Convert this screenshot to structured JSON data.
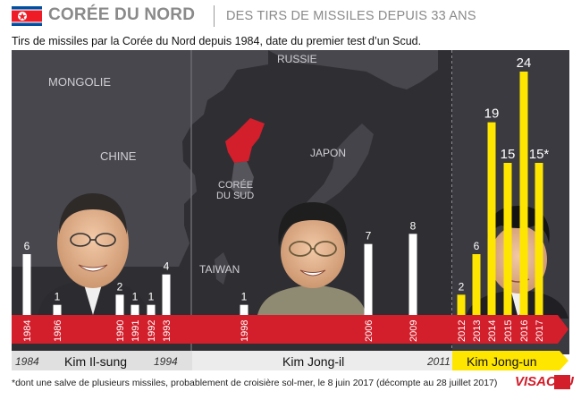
{
  "header": {
    "title": "CORÉE DU NORD",
    "subtitle": "DES TIRS DE MISSILES DEPUIS 33 ANS"
  },
  "intro": "Tirs de missiles par la Corée du Nord depuis 1984, date du premier test d’un Scud.",
  "map_labels": {
    "russia": "RUSSIE",
    "mongolia": "MONGOLIE",
    "china": "CHINE",
    "japan": "JAPON",
    "south_korea_1": "CORÉE",
    "south_korea_2": "DU SUD",
    "taiwan": "TAIWAN"
  },
  "leaders": [
    {
      "name": "Kim Il-sung",
      "start": "1984",
      "end": "1994"
    },
    {
      "name": "Kim Jong-il",
      "start": "",
      "end": "2011"
    },
    {
      "name": "Kim Jong-un",
      "start": "",
      "end": ""
    }
  ],
  "chart_data": {
    "type": "bar",
    "title": "Tirs de missiles par la Corée du Nord depuis 1984",
    "categories": [
      "1984",
      "1986",
      "1990",
      "1991",
      "1992",
      "1993",
      "1998",
      "2006",
      "2009",
      "2012",
      "2013",
      "2014",
      "2015",
      "2016",
      "2017"
    ],
    "values": [
      6,
      1,
      2,
      1,
      1,
      4,
      1,
      7,
      8,
      2,
      6,
      19,
      15,
      24,
      15
    ],
    "value_labels": [
      "6",
      "1",
      "2",
      "1",
      "1",
      "4",
      "1",
      "7",
      "8",
      "2",
      "6",
      "19",
      "15",
      "24",
      "15*"
    ],
    "colors": [
      "#ffffff",
      "#ffffff",
      "#ffffff",
      "#ffffff",
      "#ffffff",
      "#ffffff",
      "#ffffff",
      "#ffffff",
      "#ffffff",
      "#ffe600",
      "#ffe600",
      "#ffe600",
      "#ffe600",
      "#ffe600",
      "#ffe600"
    ],
    "ylim": [
      0,
      24
    ],
    "xlabel": "",
    "ylabel": ""
  },
  "footnote": "*dont une salve de plusieurs missiles, probablement de croisière sol-mer, le 8 juin 2017 (décompte au 28 juillet 2017)",
  "brand": "VISACTU",
  "colors": {
    "accent_red": "#d21f2b",
    "yellow": "#ffe600",
    "panel_dark": "#2f2f33",
    "header_gray": "#8a8a8a"
  }
}
